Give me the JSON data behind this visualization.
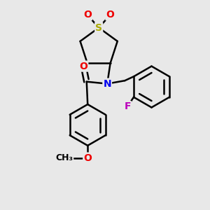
{
  "bg_color": "#e8e8e8",
  "bond_color": "#000000",
  "bond_width": 1.8,
  "S_color": "#aaaa00",
  "N_color": "#0000ee",
  "O_color": "#ee0000",
  "F_color": "#bb00bb",
  "figsize": [
    3.0,
    3.0
  ],
  "dpi": 100,
  "xlim": [
    0,
    10
  ],
  "ylim": [
    0,
    10
  ]
}
